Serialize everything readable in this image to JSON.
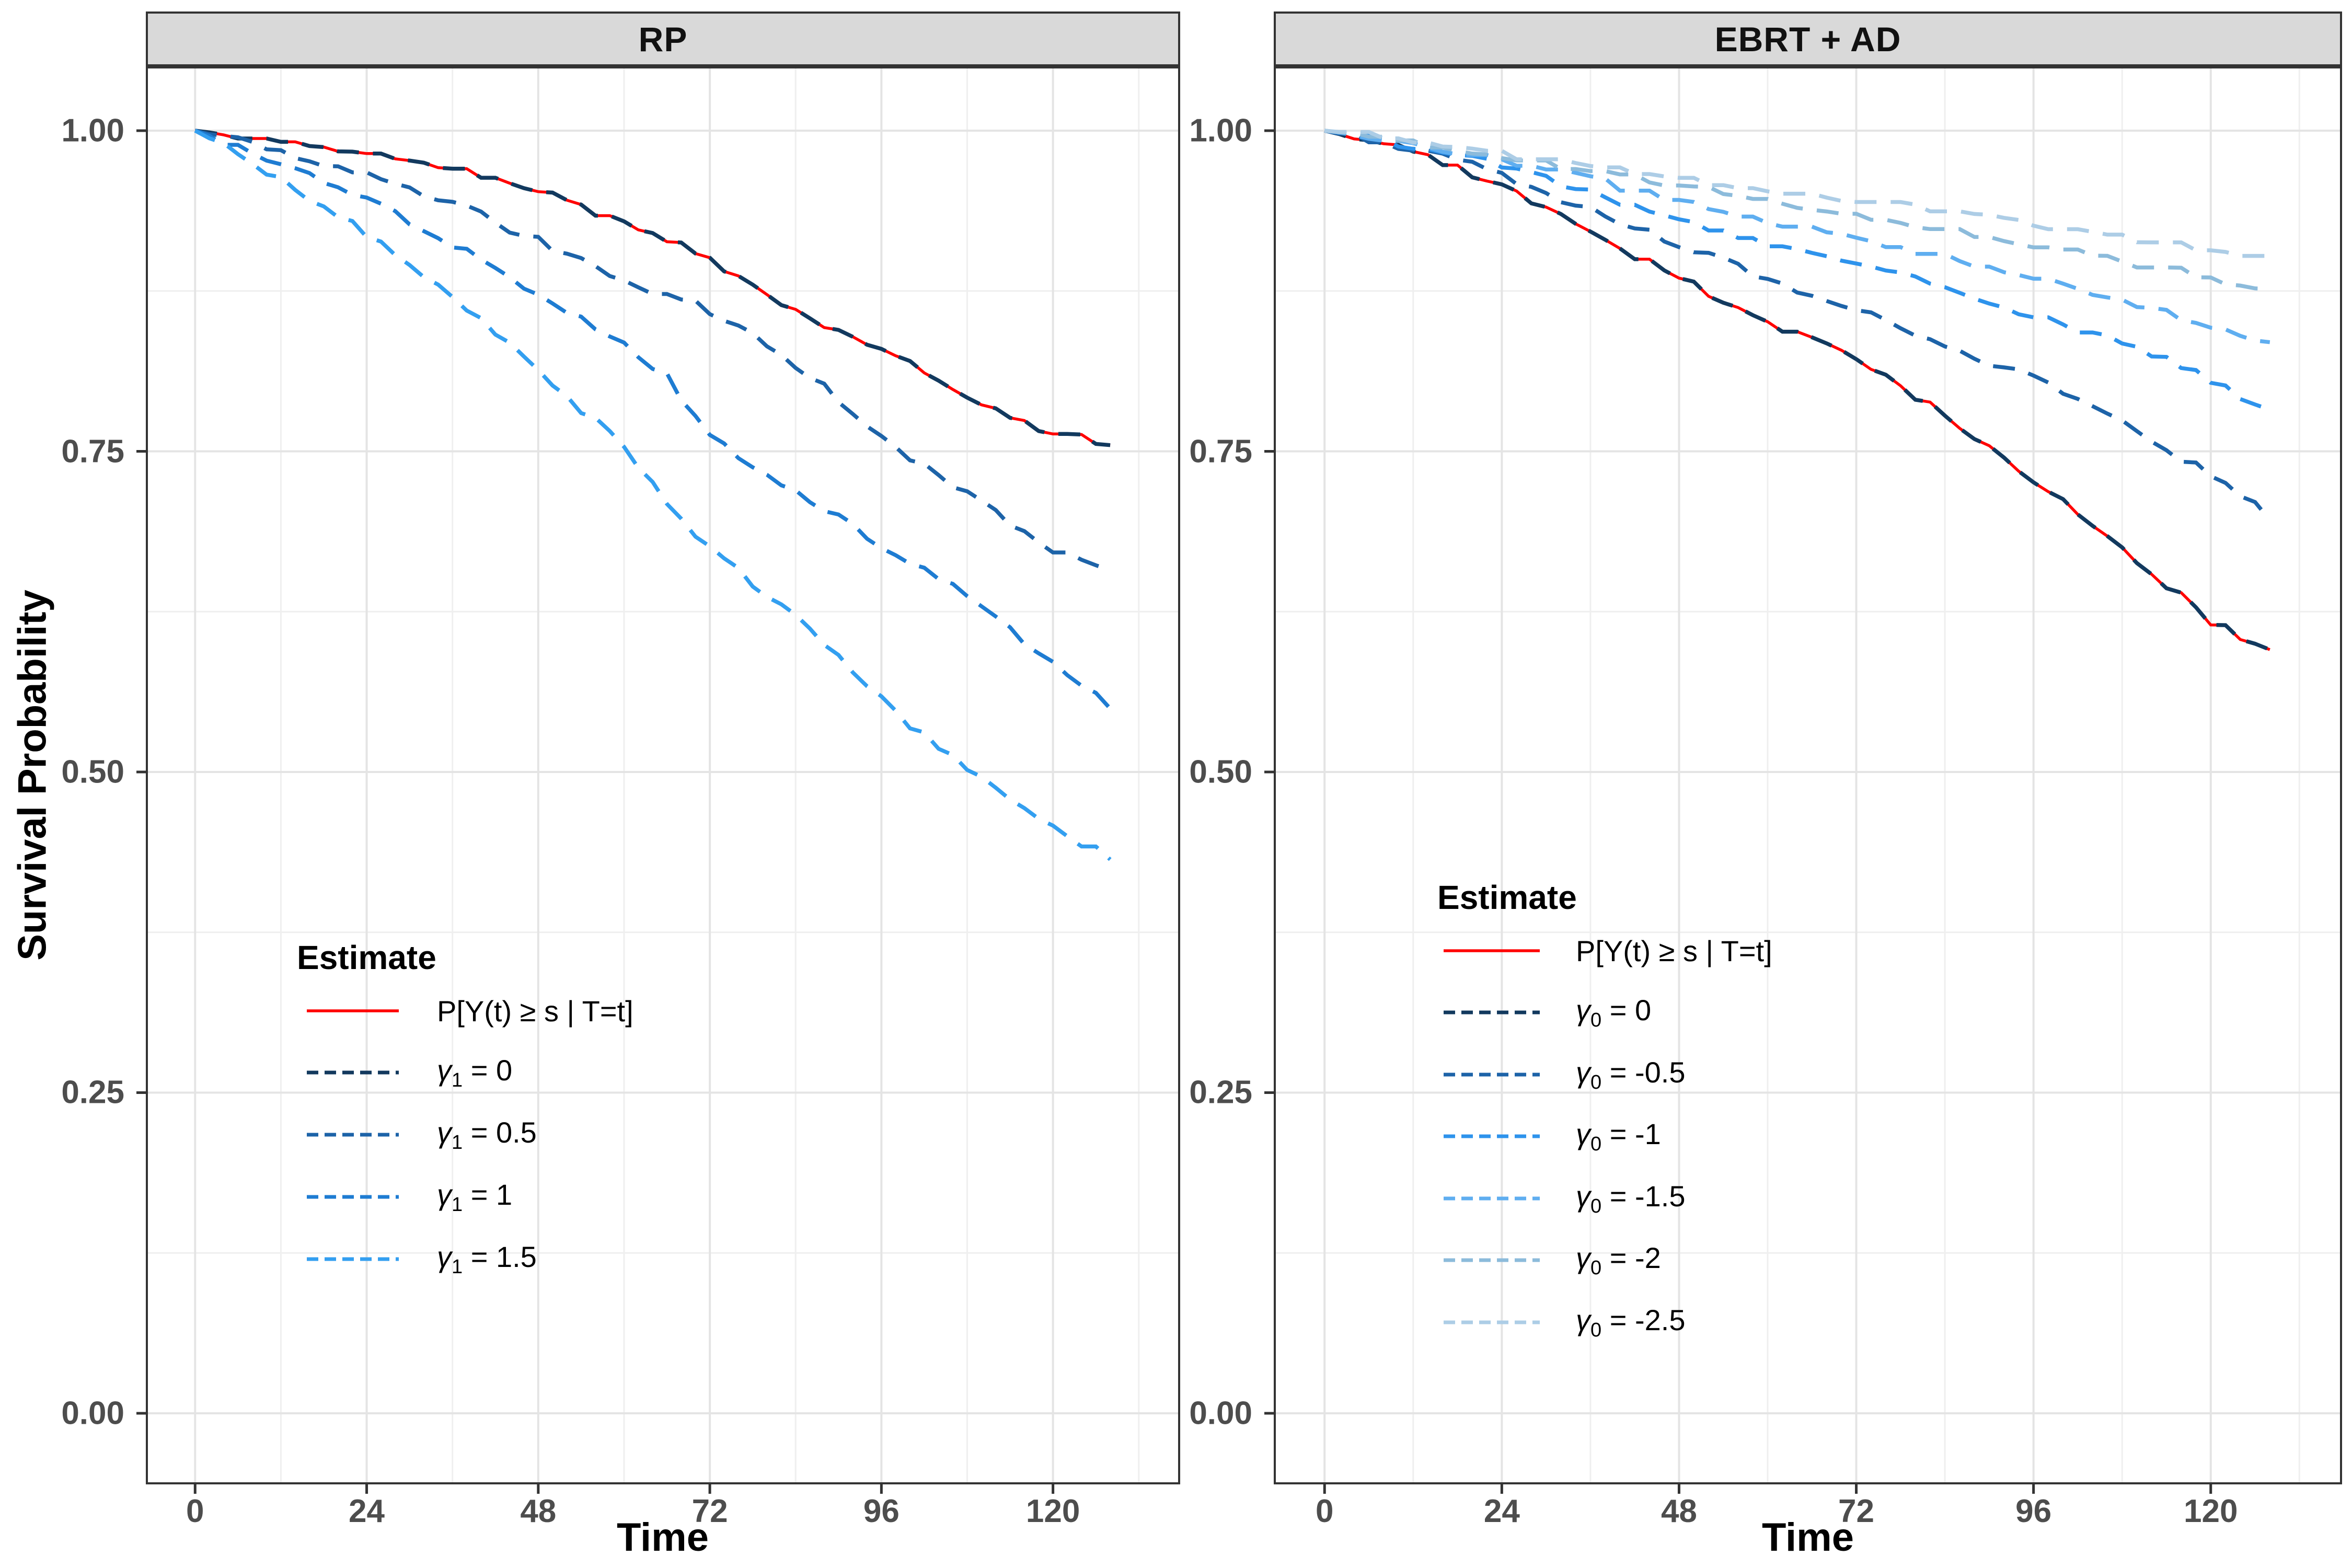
{
  "chart_data": {
    "type": "line",
    "xlabel": "Time",
    "ylabel": "Survival Probability",
    "x_ticks": [
      0,
      24,
      48,
      72,
      96,
      120
    ],
    "x_minor": [
      12,
      36,
      60,
      84,
      108,
      132
    ],
    "y_ticks": [
      0.0,
      0.25,
      0.5,
      0.75,
      1.0
    ],
    "y_tick_labels": [
      "0.00",
      "0.25",
      "0.50",
      "0.75",
      "1.00"
    ],
    "y_minor": [
      0.125,
      0.375,
      0.625,
      0.875
    ],
    "xlim": [
      -6.6,
      137.5
    ],
    "ylim": [
      -0.0538,
      1.0485
    ],
    "grid": "major+minor",
    "legend_position": "inside-panel",
    "colors": {
      "reference_red": "#FF0000",
      "grid_major": "#E4E4E4",
      "grid_minor": "#EFEFEF",
      "panel_border": "#333333",
      "tick": "#333333",
      "tick_label": "#4D4D4D",
      "strip_bg": "#D9D9D9"
    },
    "t": [
      0,
      6,
      12,
      18,
      24,
      30,
      36,
      42,
      48,
      54,
      60,
      66,
      72,
      78,
      84,
      90,
      96,
      102,
      108,
      114,
      120,
      125,
      129
    ],
    "panels": [
      {
        "strip": "RP",
        "legend_title": "Estimate",
        "series": [
          {
            "label": "P[Y(t) ≥ s | T=t]",
            "style": "solid",
            "color": "#FF0000",
            "seed": 3,
            "values": [
              1.0,
              0.996,
              0.991,
              0.988,
              0.985,
              0.978,
              0.971,
              0.962,
              0.952,
              0.941,
              0.929,
              0.915,
              0.898,
              0.878,
              0.858,
              0.845,
              0.831,
              0.812,
              0.793,
              0.778,
              0.764,
              0.76,
              0.757
            ]
          },
          {
            "label": "γ1 = 0",
            "sym": "γ",
            "sub": "1",
            "rhs": "0",
            "style": "dashed",
            "color": "#12395E",
            "seed": 3,
            "values": [
              1.0,
              0.996,
              0.991,
              0.988,
              0.985,
              0.978,
              0.971,
              0.962,
              0.952,
              0.941,
              0.929,
              0.915,
              0.898,
              0.878,
              0.858,
              0.845,
              0.831,
              0.812,
              0.793,
              0.778,
              0.764,
              0.76,
              0.757
            ]
          },
          {
            "label": "γ1 = 0.5",
            "sym": "γ",
            "sub": "1",
            "rhs": "0.5",
            "style": "dashed",
            "color": "#1D63A8",
            "seed": 5,
            "values": [
              1.0,
              0.992,
              0.983,
              0.975,
              0.966,
              0.955,
              0.943,
              0.929,
              0.914,
              0.899,
              0.884,
              0.872,
              0.86,
              0.839,
              0.818,
              0.79,
              0.761,
              0.739,
              0.717,
              0.695,
              0.673,
              0.663,
              0.655
            ]
          },
          {
            "label": "γ1 = 1",
            "sym": "γ",
            "sub": "1",
            "rhs": "1",
            "style": "dashed",
            "color": "#1E7CD2",
            "seed": 7,
            "values": [
              1.0,
              0.988,
              0.975,
              0.961,
              0.947,
              0.93,
              0.912,
              0.892,
              0.871,
              0.852,
              0.832,
              0.808,
              0.76,
              0.74,
              0.72,
              0.698,
              0.676,
              0.656,
              0.637,
              0.612,
              0.585,
              0.563,
              0.548
            ]
          },
          {
            "label": "γ1 = 1.5",
            "sym": "γ",
            "sub": "1",
            "rhs": "1.5",
            "style": "dashed",
            "color": "#339FF0",
            "seed": 9,
            "values": [
              1.0,
              0.982,
              0.962,
              0.941,
              0.919,
              0.896,
              0.871,
              0.843,
              0.812,
              0.783,
              0.753,
              0.712,
              0.673,
              0.648,
              0.623,
              0.59,
              0.556,
              0.528,
              0.501,
              0.478,
              0.455,
              0.442,
              0.433
            ]
          }
        ]
      },
      {
        "strip": "EBRT + AD",
        "legend_title": "Estimate",
        "series": [
          {
            "label": "P[Y(t) ≥ s | T=t]",
            "style": "solid",
            "color": "#FF0000",
            "seed": 4,
            "values": [
              1.0,
              0.992,
              0.983,
              0.971,
              0.958,
              0.94,
              0.92,
              0.903,
              0.885,
              0.867,
              0.848,
              0.838,
              0.825,
              0.801,
              0.778,
              0.752,
              0.727,
              0.701,
              0.675,
              0.646,
              0.617,
              0.603,
              0.596
            ]
          },
          {
            "label": "γ0 = 0",
            "sym": "γ",
            "sub": "0",
            "rhs": "0",
            "style": "dashed",
            "color": "#12395E",
            "seed": 4,
            "values": [
              1.0,
              0.992,
              0.983,
              0.971,
              0.958,
              0.94,
              0.92,
              0.903,
              0.885,
              0.867,
              0.848,
              0.838,
              0.825,
              0.801,
              0.778,
              0.752,
              0.727,
              0.701,
              0.675,
              0.646,
              0.617,
              0.603,
              0.596
            ]
          },
          {
            "label": "γ0 = -0.5",
            "sym": "γ",
            "sub": "0",
            "rhs": "-0.5",
            "style": "dashed",
            "color": "#1D63A8",
            "seed": 6,
            "values": [
              1.0,
              0.993,
              0.986,
              0.976,
              0.965,
              0.952,
              0.939,
              0.926,
              0.912,
              0.899,
              0.885,
              0.873,
              0.86,
              0.847,
              0.834,
              0.82,
              0.806,
              0.789,
              0.772,
              0.752,
              0.732,
              0.713,
              0.695
            ]
          },
          {
            "label": "γ0 = -1",
            "sym": "γ",
            "sub": "0",
            "rhs": "-1",
            "style": "dashed",
            "color": "#2E93EC",
            "seed": 8,
            "values": [
              1.0,
              0.995,
              0.989,
              0.981,
              0.972,
              0.962,
              0.952,
              0.941,
              0.931,
              0.921,
              0.912,
              0.904,
              0.895,
              0.886,
              0.877,
              0.867,
              0.857,
              0.846,
              0.835,
              0.821,
              0.806,
              0.791,
              0.778
            ]
          },
          {
            "label": "γ0 = -1.5",
            "sym": "γ",
            "sub": "0",
            "rhs": "-1.5",
            "style": "dashed",
            "color": "#5FAEF0",
            "seed": 10,
            "values": [
              1.0,
              0.996,
              0.99,
              0.984,
              0.977,
              0.97,
              0.962,
              0.954,
              0.947,
              0.939,
              0.931,
              0.924,
              0.917,
              0.91,
              0.902,
              0.894,
              0.886,
              0.877,
              0.868,
              0.858,
              0.848,
              0.84,
              0.834
            ]
          },
          {
            "label": "γ0 = -2",
            "sym": "γ",
            "sub": "0",
            "rhs": "-2",
            "style": "dashed",
            "color": "#8CBBDB",
            "seed": 12,
            "values": [
              1.0,
              0.996,
              0.991,
              0.986,
              0.98,
              0.975,
              0.969,
              0.963,
              0.958,
              0.952,
              0.946,
              0.941,
              0.935,
              0.929,
              0.923,
              0.917,
              0.911,
              0.905,
              0.898,
              0.892,
              0.885,
              0.881,
              0.877
            ]
          },
          {
            "label": "γ0 = -2.5",
            "sym": "γ",
            "sub": "0",
            "rhs": "-2.5",
            "style": "dashed",
            "color": "#ADCDE6",
            "seed": 14,
            "values": [
              1.0,
              0.997,
              0.993,
              0.988,
              0.982,
              0.978,
              0.973,
              0.968,
              0.964,
              0.959,
              0.955,
              0.951,
              0.946,
              0.942,
              0.937,
              0.933,
              0.928,
              0.923,
              0.918,
              0.913,
              0.908,
              0.905,
              0.902
            ]
          }
        ]
      }
    ]
  }
}
